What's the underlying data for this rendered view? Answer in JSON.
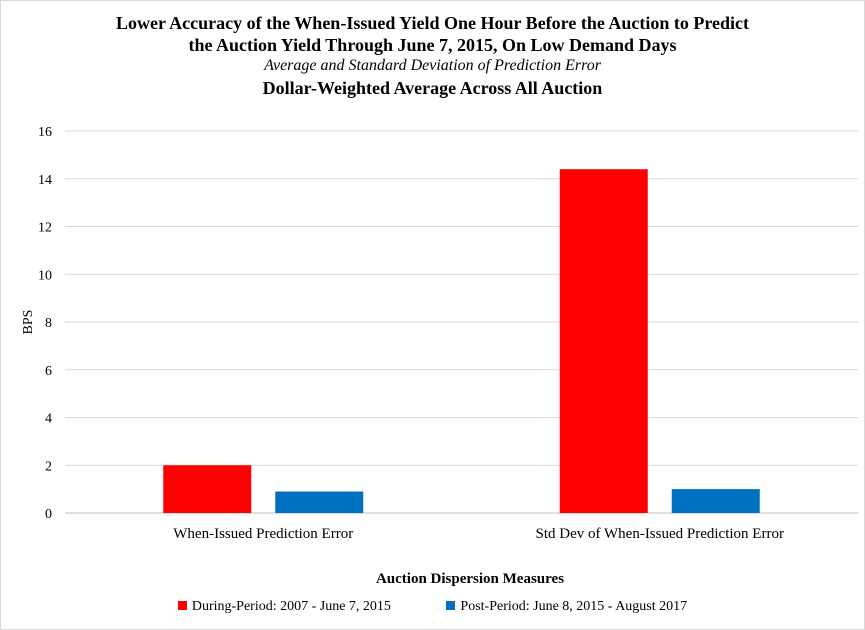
{
  "chart_data": {
    "type": "bar",
    "title_lines": [
      "Lower Accuracy of the When-Issued Yield One Hour Before the Auction to Predict",
      "the Auction Yield Through June 7, 2015, On Low Demand Days"
    ],
    "subtitle": "Average and Standard Deviation of Prediction Error",
    "subtitle2": "Dollar-Weighted Average Across All Auction",
    "xlabel": "Auction Dispersion Measures",
    "ylabel": "BPS",
    "ylim": [
      0,
      16
    ],
    "yticks": [
      0,
      2,
      4,
      6,
      8,
      10,
      12,
      14,
      16
    ],
    "grid": true,
    "legend_position": "bottom",
    "categories": [
      "When-Issued Prediction Error",
      "Std Dev of When-Issued Prediction Error"
    ],
    "series": [
      {
        "name": "During-Period: 2007 - June 7, 2015",
        "color": "#ff0000",
        "values": [
          2.0,
          14.4
        ]
      },
      {
        "name": "Post-Period: June 8, 2015 - August 2017",
        "color": "#0070c0",
        "values": [
          0.9,
          1.0
        ]
      }
    ]
  }
}
